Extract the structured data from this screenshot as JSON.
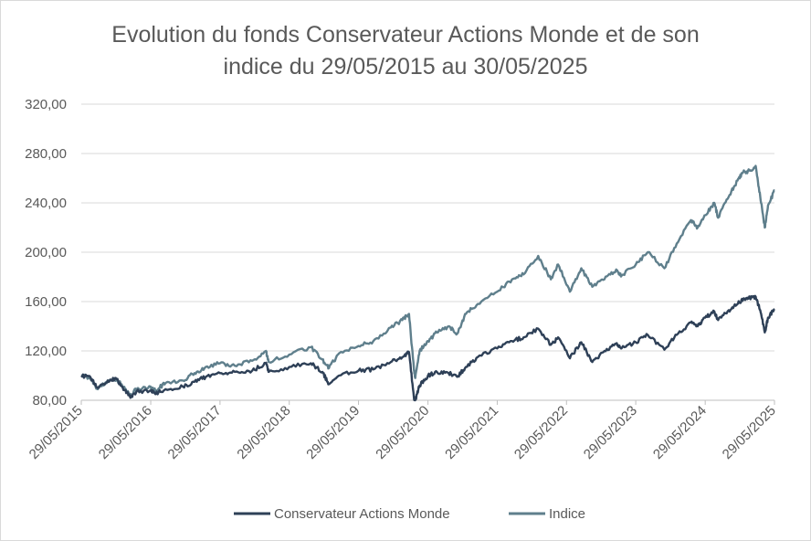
{
  "chart_data": {
    "type": "line",
    "title": [
      "Evolution du fonds Conservateur Actions Monde et de son",
      "indice du 29/05/2015 au 30/05/2025"
    ],
    "xlabel": "",
    "ylabel": "",
    "ylim": [
      80,
      320
    ],
    "y_ticks": [
      80,
      120,
      160,
      200,
      240,
      280,
      320
    ],
    "y_tick_labels": [
      "80,00",
      "120,00",
      "160,00",
      "200,00",
      "240,00",
      "280,00",
      "320,00"
    ],
    "x_tick_labels": [
      "29/05/2015",
      "29/05/2016",
      "29/05/2017",
      "29/05/2018",
      "29/05/2019",
      "29/05/2020",
      "29/05/2021",
      "29/05/2022",
      "29/05/2023",
      "29/05/2024",
      "29/05/2025"
    ],
    "grid": "horizontal",
    "legend_position": "bottom",
    "series": [
      {
        "name": "Conservateur Actions Monde",
        "color": "#2e4057",
        "points": [
          [
            "2015-05-29",
            100
          ],
          [
            "2015-07-15",
            99
          ],
          [
            "2015-08-24",
            90
          ],
          [
            "2015-10-15",
            96
          ],
          [
            "2015-12-01",
            97
          ],
          [
            "2016-01-15",
            88
          ],
          [
            "2016-02-12",
            82
          ],
          [
            "2016-03-15",
            87
          ],
          [
            "2016-05-29",
            88
          ],
          [
            "2016-06-24",
            85
          ],
          [
            "2016-08-15",
            89
          ],
          [
            "2016-11-15",
            91
          ],
          [
            "2017-01-15",
            95
          ],
          [
            "2017-03-15",
            99
          ],
          [
            "2017-05-29",
            102
          ],
          [
            "2017-08-15",
            103
          ],
          [
            "2017-11-15",
            104
          ],
          [
            "2018-01-26",
            110
          ],
          [
            "2018-02-09",
            103
          ],
          [
            "2018-05-29",
            107
          ],
          [
            "2018-09-20",
            110
          ],
          [
            "2018-11-20",
            103
          ],
          [
            "2018-12-24",
            93
          ],
          [
            "2019-02-15",
            100
          ],
          [
            "2019-05-29",
            104
          ],
          [
            "2019-08-15",
            105
          ],
          [
            "2019-11-15",
            111
          ],
          [
            "2020-01-15",
            115
          ],
          [
            "2020-02-19",
            119
          ],
          [
            "2020-03-16",
            82
          ],
          [
            "2020-03-23",
            80
          ],
          [
            "2020-04-15",
            92
          ],
          [
            "2020-05-29",
            100
          ],
          [
            "2020-07-15",
            103
          ],
          [
            "2020-09-15",
            102
          ],
          [
            "2020-10-30",
            99
          ],
          [
            "2020-12-15",
            107
          ],
          [
            "2021-02-15",
            115
          ],
          [
            "2021-05-29",
            122
          ],
          [
            "2021-08-15",
            128
          ],
          [
            "2021-10-15",
            131
          ],
          [
            "2021-12-31",
            138
          ],
          [
            "2022-03-08",
            125
          ],
          [
            "2022-04-15",
            131
          ],
          [
            "2022-06-16",
            114
          ],
          [
            "2022-08-15",
            127
          ],
          [
            "2022-10-12",
            111
          ],
          [
            "2022-12-15",
            120
          ],
          [
            "2023-02-15",
            126
          ],
          [
            "2023-03-15",
            122
          ],
          [
            "2023-05-29",
            127
          ],
          [
            "2023-07-31",
            133
          ],
          [
            "2023-10-27",
            121
          ],
          [
            "2023-12-31",
            133
          ],
          [
            "2024-03-15",
            143
          ],
          [
            "2024-04-19",
            140
          ],
          [
            "2024-05-29",
            147
          ],
          [
            "2024-07-16",
            152
          ],
          [
            "2024-08-05",
            145
          ],
          [
            "2024-09-30",
            153
          ],
          [
            "2024-11-15",
            158
          ],
          [
            "2024-12-15",
            162
          ],
          [
            "2025-01-20",
            163
          ],
          [
            "2025-02-19",
            164
          ],
          [
            "2025-03-15",
            153
          ],
          [
            "2025-04-08",
            135
          ],
          [
            "2025-04-25",
            147
          ],
          [
            "2025-05-30",
            154
          ]
        ]
      },
      {
        "name": "Indice",
        "color": "#5f7f8c",
        "points": [
          [
            "2015-05-29",
            100
          ],
          [
            "2015-07-15",
            98
          ],
          [
            "2015-08-24",
            89
          ],
          [
            "2015-10-15",
            96
          ],
          [
            "2015-12-01",
            97
          ],
          [
            "2016-01-15",
            89
          ],
          [
            "2016-02-12",
            84
          ],
          [
            "2016-03-15",
            89
          ],
          [
            "2016-05-29",
            91
          ],
          [
            "2016-06-24",
            88
          ],
          [
            "2016-08-15",
            94
          ],
          [
            "2016-11-15",
            96
          ],
          [
            "2017-01-15",
            102
          ],
          [
            "2017-03-15",
            107
          ],
          [
            "2017-05-29",
            110
          ],
          [
            "2017-08-15",
            108
          ],
          [
            "2017-11-15",
            112
          ],
          [
            "2018-01-26",
            120
          ],
          [
            "2018-02-09",
            111
          ],
          [
            "2018-05-29",
            117
          ],
          [
            "2018-09-20",
            123
          ],
          [
            "2018-11-20",
            113
          ],
          [
            "2018-12-24",
            106
          ],
          [
            "2019-02-15",
            118
          ],
          [
            "2019-05-29",
            124
          ],
          [
            "2019-08-15",
            128
          ],
          [
            "2019-11-15",
            139
          ],
          [
            "2020-01-15",
            145
          ],
          [
            "2020-02-19",
            150
          ],
          [
            "2020-03-16",
            105
          ],
          [
            "2020-03-23",
            98
          ],
          [
            "2020-04-15",
            120
          ],
          [
            "2020-05-29",
            128
          ],
          [
            "2020-07-15",
            135
          ],
          [
            "2020-09-15",
            140
          ],
          [
            "2020-10-30",
            134
          ],
          [
            "2020-12-15",
            150
          ],
          [
            "2021-02-15",
            158
          ],
          [
            "2021-05-29",
            168
          ],
          [
            "2021-08-15",
            178
          ],
          [
            "2021-10-15",
            182
          ],
          [
            "2021-12-31",
            197
          ],
          [
            "2022-03-08",
            178
          ],
          [
            "2022-04-15",
            190
          ],
          [
            "2022-06-16",
            168
          ],
          [
            "2022-08-15",
            187
          ],
          [
            "2022-10-12",
            172
          ],
          [
            "2022-12-15",
            178
          ],
          [
            "2023-02-15",
            186
          ],
          [
            "2023-03-15",
            181
          ],
          [
            "2023-05-29",
            190
          ],
          [
            "2023-07-31",
            200
          ],
          [
            "2023-10-27",
            187
          ],
          [
            "2023-12-31",
            207
          ],
          [
            "2024-03-15",
            226
          ],
          [
            "2024-04-19",
            220
          ],
          [
            "2024-05-29",
            230
          ],
          [
            "2024-07-16",
            240
          ],
          [
            "2024-08-05",
            228
          ],
          [
            "2024-09-30",
            245
          ],
          [
            "2024-11-15",
            258
          ],
          [
            "2024-12-15",
            265
          ],
          [
            "2025-01-20",
            266
          ],
          [
            "2025-02-19",
            270
          ],
          [
            "2025-03-15",
            245
          ],
          [
            "2025-04-08",
            220
          ],
          [
            "2025-04-25",
            238
          ],
          [
            "2025-05-30",
            250
          ]
        ]
      }
    ]
  }
}
